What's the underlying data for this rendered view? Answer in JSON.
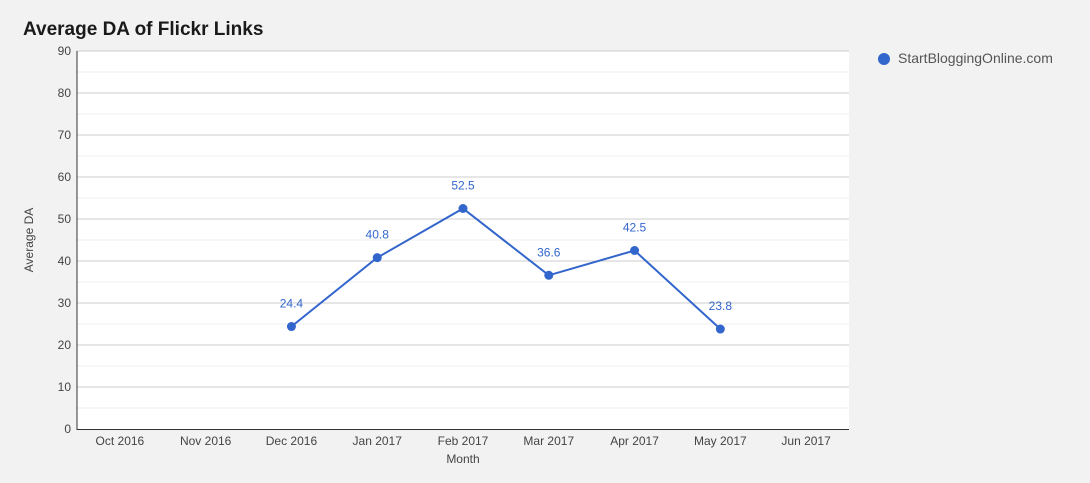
{
  "chart_data": {
    "type": "line",
    "title": "Average DA of Flickr Links",
    "xlabel": "Month",
    "ylabel": "Average DA",
    "categories": [
      "Oct 2016",
      "Nov 2016",
      "Dec 2016",
      "Jan 2017",
      "Feb 2017",
      "Mar 2017",
      "Apr 2017",
      "May 2017",
      "Jun 2017"
    ],
    "ylim": [
      0,
      90
    ],
    "yticks": [
      0,
      10,
      20,
      30,
      40,
      50,
      60,
      70,
      80,
      90
    ],
    "grid": true,
    "legend_position": "right",
    "series": [
      {
        "name": "StartBloggingOnline.com",
        "color": "#3366cc",
        "values": [
          null,
          null,
          24.4,
          40.8,
          52.5,
          36.6,
          42.5,
          23.8,
          null
        ],
        "data_labels": [
          "",
          "",
          "24.4",
          "40.8",
          "52.5",
          "36.6",
          "42.5",
          "23.8",
          ""
        ]
      }
    ]
  }
}
